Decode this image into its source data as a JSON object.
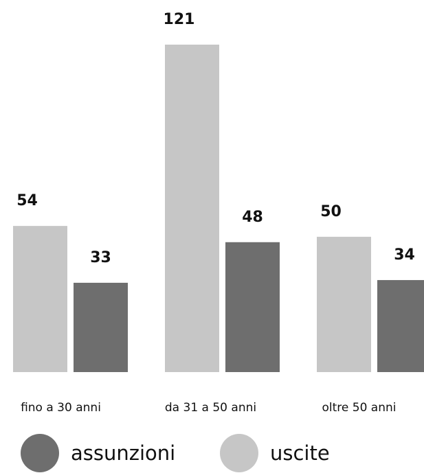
{
  "chart_data": {
    "type": "bar",
    "categories": [
      "fino a 30 anni",
      "da 31 a 50 anni",
      "oltre 50 anni"
    ],
    "series": [
      {
        "name": "uscite",
        "values": [
          54,
          121,
          50
        ],
        "color": "#c6c6c6"
      },
      {
        "name": "assunzioni",
        "values": [
          33,
          48,
          34
        ],
        "color": "#6e6e6e"
      }
    ],
    "title": "",
    "xlabel": "",
    "ylabel": "",
    "ylim": [
      0,
      121
    ],
    "grid": false,
    "legend_position": "bottom"
  },
  "legend": [
    {
      "label": "assunzioni",
      "color": "#6e6e6e"
    },
    {
      "label": "uscite",
      "color": "#c6c6c6"
    }
  ]
}
